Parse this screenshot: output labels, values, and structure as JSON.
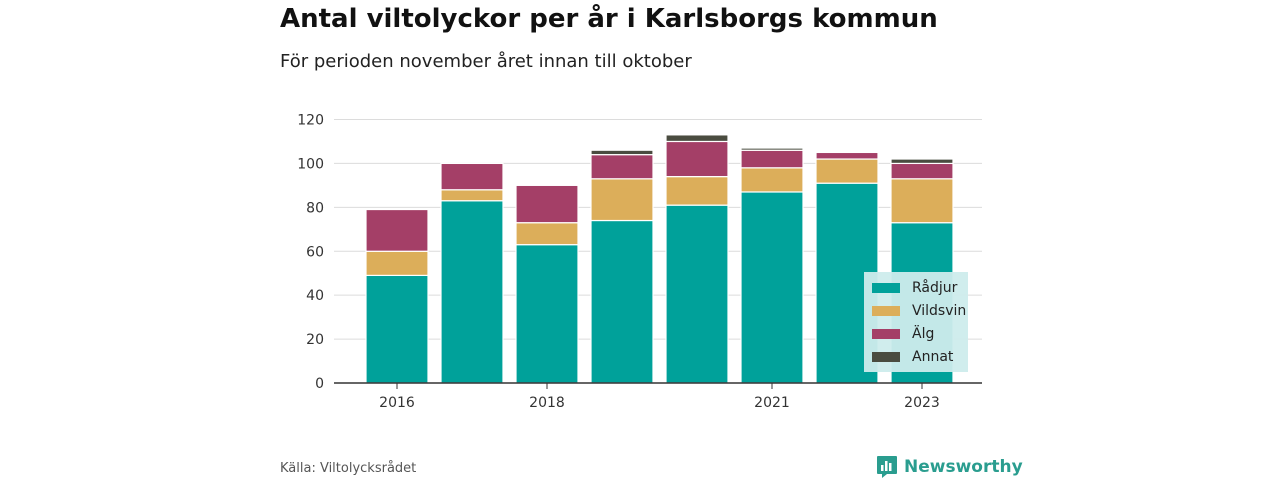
{
  "title": "Antal viltolyckor per år i Karlsborgs kommun",
  "subtitle": "För perioden november året innan till oktober",
  "source": "Källa: Viltolycksrådet",
  "brand": {
    "name": "Newsworthy",
    "icon": "bar-chart-speech-bubble-icon",
    "color": "#2a9d8f"
  },
  "chart_data": {
    "type": "bar",
    "stacked": true,
    "categories": [
      "2016",
      "2017",
      "2018",
      "2019",
      "2020",
      "2021",
      "2022",
      "2023"
    ],
    "x_tick_labels": [
      "2016",
      "",
      "2018",
      "",
      "",
      "2021",
      "",
      "2023"
    ],
    "y_ticks": [
      "0",
      "20",
      "40",
      "60",
      "80",
      "100",
      "120"
    ],
    "ylim": [
      0,
      120
    ],
    "grid": true,
    "legend_position": "bottom-right",
    "series": [
      {
        "name": "Rådjur",
        "color": "#00a19a",
        "values": [
          49,
          83,
          63,
          74,
          81,
          87,
          91,
          73
        ]
      },
      {
        "name": "Vildsvin",
        "color": "#dcae5a",
        "values": [
          11,
          5,
          10,
          19,
          13,
          11,
          11,
          20
        ]
      },
      {
        "name": "Älg",
        "color": "#a43f67",
        "values": [
          19,
          12,
          17,
          11,
          16,
          8,
          3,
          7
        ]
      },
      {
        "name": "Annat",
        "color": "#4a4c40",
        "values": [
          0,
          0,
          0,
          2,
          3,
          1,
          0,
          2
        ]
      }
    ]
  }
}
